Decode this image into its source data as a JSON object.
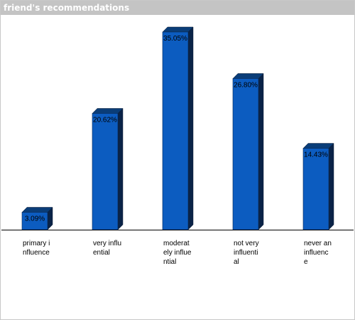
{
  "panel": {
    "title": "friend's recommendations"
  },
  "colors": {
    "bar_front": "#0c5cc0",
    "bar_top": "#0a3d78",
    "bar_side": "#0a2347",
    "baseline": "#000000",
    "label_text": "#000000"
  },
  "chart_data": {
    "type": "bar",
    "title": "",
    "xlabel": "",
    "ylabel": "",
    "categories": [
      "primary influence",
      "very influential",
      "moderately influential",
      "not very influential",
      "never an influence"
    ],
    "values": [
      3.09,
      20.62,
      35.05,
      26.8,
      14.43
    ],
    "value_labels": [
      "3.09%",
      "20.62%",
      "35.05%",
      "26.80%",
      "14.43%"
    ],
    "ylim": [
      0,
      35.05
    ],
    "grid": false,
    "legend": "none",
    "style": "3d"
  }
}
